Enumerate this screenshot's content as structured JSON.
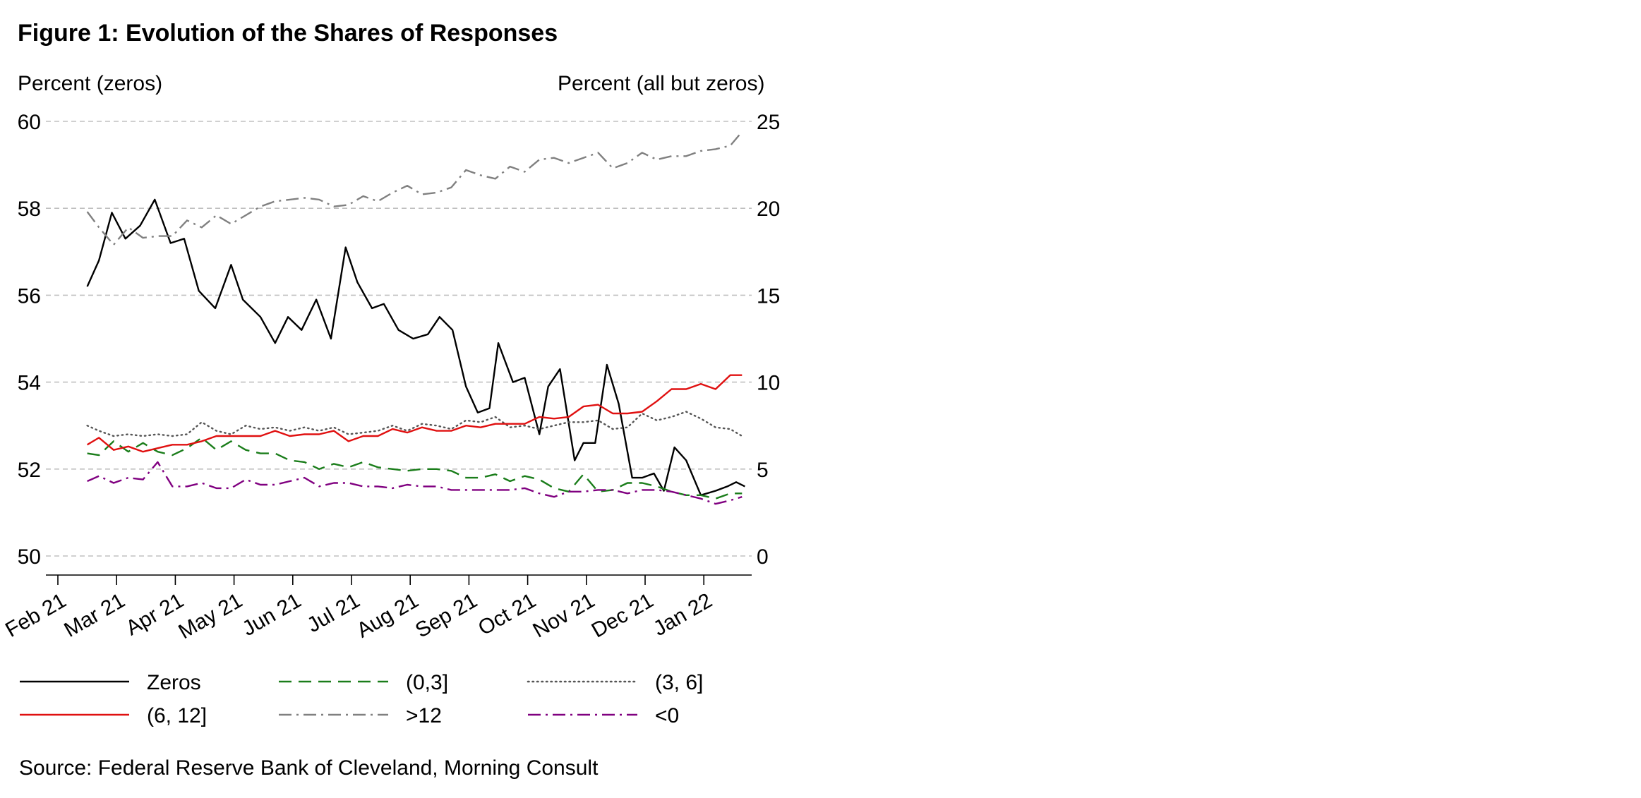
{
  "title": "Figure 1: Evolution of the Shares of Responses",
  "source": "Source: Federal Reserve Bank of Cleveland, Morning Consult",
  "chart_data": {
    "type": "line",
    "title": "Figure 1: Evolution of the Shares of Responses",
    "left_axis": {
      "label": "Percent (zeros)",
      "ticks": [
        "50",
        "52",
        "54",
        "56",
        "58",
        "60"
      ],
      "range": [
        50,
        60
      ]
    },
    "right_axis": {
      "label": "Percent (all but zeros)",
      "ticks": [
        "0",
        "5",
        "10",
        "15",
        "20",
        "25"
      ],
      "range": [
        0,
        25
      ]
    },
    "x_tick_labels": [
      "Feb 21",
      "Mar 21",
      "Apr 21",
      "May 21",
      "Jun 21",
      "Jul 21",
      "Aug 21",
      "Sep 21",
      "Oct 21",
      "Nov 21",
      "Dec 21",
      "Jan 22"
    ],
    "x_range_months": [
      -0.2,
      12.0
    ],
    "grid": "horizontal dashed",
    "legend_position": "bottom",
    "series": [
      {
        "name": "Zeros",
        "axis": "left",
        "color": "#000000",
        "style": "solid",
        "x": [
          0.5,
          0.7,
          0.92,
          1.15,
          1.4,
          1.65,
          1.92,
          2.15,
          2.4,
          2.68,
          2.95,
          3.15,
          3.45,
          3.7,
          3.92,
          4.15,
          4.4,
          4.65,
          4.9,
          5.1,
          5.35,
          5.55,
          5.8,
          6.05,
          6.3,
          6.5,
          6.72,
          6.95,
          7.15,
          7.35,
          7.5,
          7.75,
          7.95,
          8.2,
          8.35,
          8.55,
          8.8,
          8.95,
          9.15,
          9.35,
          9.55,
          9.78,
          9.95,
          10.15,
          10.32,
          10.5,
          10.7,
          10.95,
          11.2,
          11.4,
          11.55,
          11.7
        ],
        "values": [
          56.2,
          56.8,
          57.9,
          57.3,
          57.6,
          58.2,
          57.2,
          57.3,
          56.1,
          55.7,
          56.7,
          55.9,
          55.5,
          54.9,
          55.5,
          55.2,
          55.9,
          55.0,
          57.1,
          56.3,
          55.7,
          55.8,
          55.2,
          55.0,
          55.1,
          55.5,
          55.2,
          53.9,
          53.3,
          53.4,
          54.9,
          54.0,
          54.1,
          52.8,
          53.9,
          54.3,
          52.2,
          52.6,
          52.6,
          54.4,
          53.5,
          51.8,
          51.8,
          51.9,
          51.5,
          52.5,
          52.2,
          51.4,
          51.5,
          51.6,
          51.7,
          51.6
        ]
      },
      {
        "name": "(0,3]",
        "axis": "right",
        "color": "#1a7d1a",
        "style": "long-dash",
        "x": [
          0.5,
          0.7,
          0.95,
          1.2,
          1.45,
          1.7,
          1.95,
          2.2,
          2.45,
          2.7,
          2.95,
          3.2,
          3.45,
          3.7,
          3.95,
          4.2,
          4.45,
          4.7,
          4.95,
          5.2,
          5.45,
          5.7,
          5.95,
          6.2,
          6.45,
          6.7,
          6.95,
          7.2,
          7.45,
          7.7,
          7.95,
          8.2,
          8.45,
          8.7,
          8.95,
          9.2,
          9.45,
          9.7,
          9.95,
          10.2,
          10.45,
          10.7,
          10.95,
          11.2,
          11.45,
          11.65
        ],
        "values": [
          5.9,
          5.8,
          6.6,
          6.0,
          6.5,
          6.0,
          5.8,
          6.2,
          6.8,
          6.1,
          6.6,
          6.1,
          5.9,
          5.9,
          5.5,
          5.4,
          5.0,
          5.3,
          5.1,
          5.4,
          5.1,
          5.0,
          4.9,
          5.0,
          5.0,
          4.9,
          4.5,
          4.5,
          4.7,
          4.3,
          4.6,
          4.4,
          3.9,
          3.7,
          4.7,
          3.7,
          3.8,
          4.2,
          4.2,
          4.0,
          3.7,
          3.5,
          3.5,
          3.3,
          3.6,
          3.6
        ]
      },
      {
        "name": "(3, 6]",
        "axis": "right",
        "color": "#555555",
        "style": "dotted",
        "x": [
          0.5,
          0.7,
          0.95,
          1.2,
          1.45,
          1.7,
          1.95,
          2.2,
          2.45,
          2.7,
          2.95,
          3.2,
          3.45,
          3.7,
          3.95,
          4.2,
          4.45,
          4.7,
          4.95,
          5.2,
          5.45,
          5.7,
          5.95,
          6.2,
          6.45,
          6.7,
          6.95,
          7.2,
          7.45,
          7.7,
          7.95,
          8.2,
          8.45,
          8.7,
          8.95,
          9.2,
          9.45,
          9.7,
          9.95,
          10.2,
          10.45,
          10.7,
          10.95,
          11.2,
          11.45,
          11.65
        ],
        "values": [
          7.5,
          7.2,
          6.9,
          7.0,
          6.9,
          7.0,
          6.9,
          7.0,
          7.7,
          7.2,
          7.0,
          7.5,
          7.3,
          7.4,
          7.2,
          7.4,
          7.2,
          7.4,
          7.0,
          7.1,
          7.2,
          7.5,
          7.2,
          7.6,
          7.5,
          7.3,
          7.8,
          7.7,
          8.0,
          7.4,
          7.5,
          7.3,
          7.5,
          7.7,
          7.7,
          7.8,
          7.3,
          7.4,
          8.2,
          7.8,
          8.0,
          8.3,
          7.9,
          7.4,
          7.3,
          6.9
        ]
      },
      {
        "name": "(6, 12]",
        "axis": "right",
        "color": "#e01010",
        "style": "solid",
        "x": [
          0.5,
          0.7,
          0.95,
          1.2,
          1.45,
          1.7,
          1.95,
          2.2,
          2.45,
          2.7,
          2.95,
          3.2,
          3.45,
          3.7,
          3.95,
          4.2,
          4.45,
          4.7,
          4.95,
          5.2,
          5.45,
          5.7,
          5.95,
          6.2,
          6.45,
          6.7,
          6.95,
          7.2,
          7.45,
          7.7,
          7.95,
          8.2,
          8.45,
          8.7,
          8.95,
          9.2,
          9.45,
          9.7,
          9.95,
          10.2,
          10.45,
          10.7,
          10.95,
          11.2,
          11.45,
          11.65
        ],
        "values": [
          6.4,
          6.8,
          6.1,
          6.3,
          6.0,
          6.2,
          6.4,
          6.4,
          6.6,
          6.9,
          6.9,
          6.9,
          6.9,
          7.2,
          6.9,
          7.0,
          7.0,
          7.2,
          6.6,
          6.9,
          6.9,
          7.3,
          7.1,
          7.4,
          7.2,
          7.2,
          7.5,
          7.4,
          7.6,
          7.6,
          7.6,
          8.0,
          7.9,
          8.0,
          8.6,
          8.7,
          8.2,
          8.2,
          8.3,
          8.9,
          9.6,
          9.6,
          9.9,
          9.6,
          10.4,
          10.4
        ]
      },
      {
        "name": ">12",
        "axis": "right",
        "color": "#808080",
        "style": "dash-dot",
        "x": [
          0.5,
          0.7,
          0.95,
          1.2,
          1.45,
          1.7,
          1.95,
          2.2,
          2.45,
          2.7,
          2.95,
          3.2,
          3.45,
          3.7,
          3.95,
          4.2,
          4.45,
          4.7,
          4.95,
          5.2,
          5.45,
          5.7,
          5.95,
          6.2,
          6.45,
          6.7,
          6.95,
          7.2,
          7.45,
          7.7,
          7.95,
          8.2,
          8.45,
          8.7,
          8.95,
          9.2,
          9.45,
          9.7,
          9.95,
          10.2,
          10.45,
          10.7,
          10.95,
          11.2,
          11.45,
          11.65
        ],
        "values": [
          19.8,
          18.9,
          17.9,
          18.9,
          18.3,
          18.4,
          18.4,
          19.3,
          18.9,
          19.6,
          19.1,
          19.6,
          20.1,
          20.4,
          20.5,
          20.6,
          20.5,
          20.1,
          20.2,
          20.7,
          20.4,
          20.9,
          21.3,
          20.8,
          20.9,
          21.2,
          22.2,
          21.9,
          21.7,
          22.4,
          22.1,
          22.8,
          22.9,
          22.6,
          22.9,
          23.2,
          22.3,
          22.6,
          23.2,
          22.8,
          23.0,
          23.0,
          23.3,
          23.4,
          23.6,
          24.4
        ]
      },
      {
        "name": "<0",
        "axis": "right",
        "color": "#800080",
        "style": "dash-dot",
        "x": [
          0.5,
          0.7,
          0.95,
          1.2,
          1.45,
          1.7,
          1.95,
          2.2,
          2.45,
          2.7,
          2.95,
          3.2,
          3.45,
          3.7,
          3.95,
          4.2,
          4.45,
          4.7,
          4.95,
          5.2,
          5.45,
          5.7,
          5.95,
          6.2,
          6.45,
          6.7,
          6.95,
          7.2,
          7.45,
          7.7,
          7.95,
          8.2,
          8.45,
          8.7,
          8.95,
          9.2,
          9.45,
          9.7,
          9.95,
          10.2,
          10.45,
          10.7,
          10.95,
          11.2,
          11.45,
          11.65
        ],
        "values": [
          4.3,
          4.6,
          4.2,
          4.5,
          4.4,
          5.4,
          4.0,
          4.0,
          4.2,
          3.9,
          3.9,
          4.4,
          4.1,
          4.1,
          4.3,
          4.5,
          4.0,
          4.2,
          4.2,
          4.0,
          4.0,
          3.9,
          4.1,
          4.0,
          4.0,
          3.8,
          3.8,
          3.8,
          3.8,
          3.8,
          3.9,
          3.6,
          3.4,
          3.7,
          3.7,
          3.8,
          3.8,
          3.6,
          3.8,
          3.8,
          3.7,
          3.5,
          3.3,
          3.0,
          3.2,
          3.4
        ]
      }
    ],
    "legend": [
      {
        "label": "Zeros",
        "series": "Zeros"
      },
      {
        "label": "(0,3]",
        "series": "(0,3]"
      },
      {
        "label": "(3, 6]",
        "series": "(3, 6]"
      },
      {
        "label": "(6, 12]",
        "series": "(6, 12]"
      },
      {
        "label": ">12",
        "series": ">12"
      },
      {
        "label": "<0",
        "series": "<0"
      }
    ]
  }
}
